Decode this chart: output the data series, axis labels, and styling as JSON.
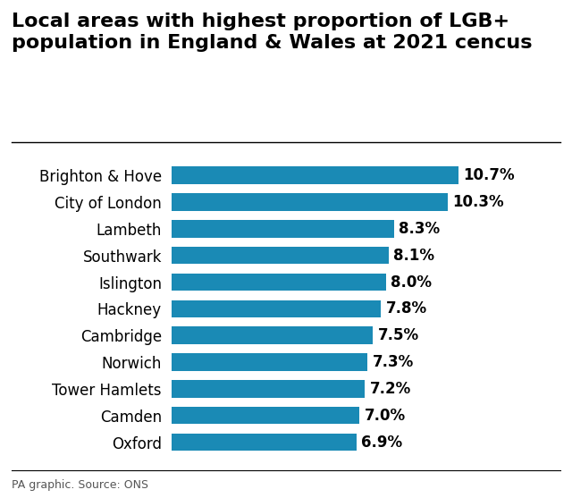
{
  "title": "Local areas with highest proportion of LGB+\npopulation in England & Wales at 2021 cencus",
  "categories": [
    "Brighton & Hove",
    "City of London",
    "Lambeth",
    "Southwark",
    "Islington",
    "Hackney",
    "Cambridge",
    "Norwich",
    "Tower Hamlets",
    "Camden",
    "Oxford"
  ],
  "values": [
    10.7,
    10.3,
    8.3,
    8.1,
    8.0,
    7.8,
    7.5,
    7.3,
    7.2,
    7.0,
    6.9
  ],
  "labels": [
    "10.7%",
    "10.3%",
    "8.3%",
    "8.1%",
    "8.0%",
    "7.8%",
    "7.5%",
    "7.3%",
    "7.2%",
    "7.0%",
    "6.9%"
  ],
  "bar_color": "#1a8ab5",
  "background_color": "#ffffff",
  "title_fontsize": 16,
  "tick_fontsize": 12,
  "value_fontsize": 12,
  "footer_text": "PA graphic. Source: ONS",
  "footer_fontsize": 9,
  "xlim": [
    0,
    12.8
  ]
}
